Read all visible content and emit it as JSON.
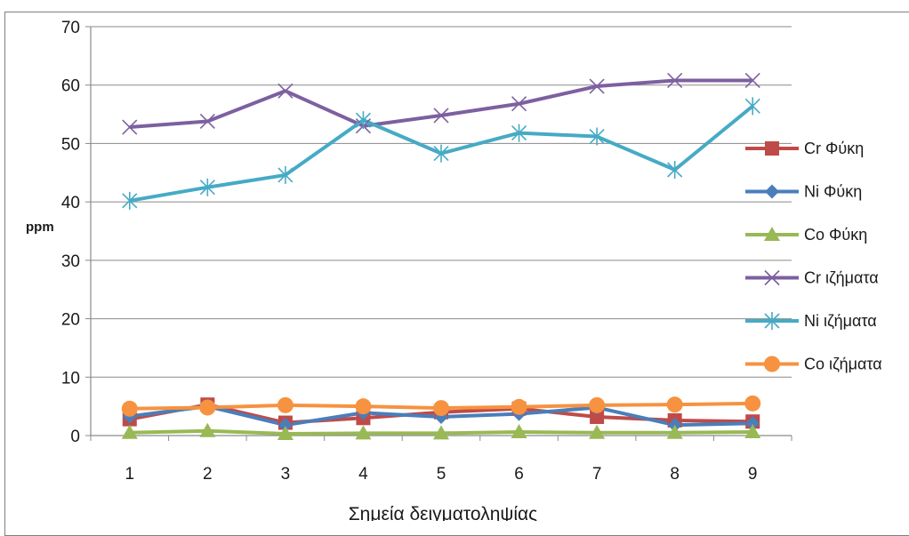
{
  "chart_data": {
    "type": "line",
    "title": "",
    "xlabel": "Σημεία δειγματοληψίας",
    "ylabel": "ppm",
    "categories": [
      "1",
      "2",
      "3",
      "4",
      "5",
      "6",
      "7",
      "8",
      "9"
    ],
    "y_ticks": [
      "0",
      "10",
      "20",
      "30",
      "40",
      "50",
      "60",
      "70"
    ],
    "ylim": [
      0,
      70
    ],
    "grid": "horizontal",
    "legend_position": "right",
    "series": [
      {
        "name": "Cr Φύκη",
        "color": "#be4b48",
        "marker": "square",
        "values": [
          2.8,
          5.3,
          2.2,
          3.0,
          4.0,
          4.6,
          3.2,
          2.6,
          2.4
        ]
      },
      {
        "name": "Ni Φύκη",
        "color": "#4a7ebb",
        "marker": "diamond",
        "values": [
          3.3,
          5.0,
          1.8,
          3.9,
          3.2,
          3.7,
          4.8,
          1.8,
          2.1
        ]
      },
      {
        "name": "Co Φύκη",
        "color": "#98b954",
        "marker": "triangle",
        "values": [
          0.5,
          0.8,
          0.3,
          0.4,
          0.4,
          0.6,
          0.5,
          0.5,
          0.6
        ]
      },
      {
        "name": "Cr ιζήματα",
        "color": "#7d60a0",
        "marker": "x",
        "values": [
          52.8,
          53.8,
          59.0,
          53.0,
          54.8,
          56.8,
          59.8,
          60.8,
          60.8
        ]
      },
      {
        "name": "Ni ιζήματα",
        "color": "#46aac5",
        "marker": "star",
        "values": [
          40.2,
          42.5,
          44.6,
          54.0,
          48.3,
          51.8,
          51.2,
          45.5,
          56.4
        ]
      },
      {
        "name": "Co ιζήματα",
        "color": "#f69240",
        "marker": "circle",
        "values": [
          4.6,
          4.8,
          5.2,
          5.0,
          4.7,
          4.9,
          5.2,
          5.3,
          5.5
        ]
      }
    ]
  }
}
